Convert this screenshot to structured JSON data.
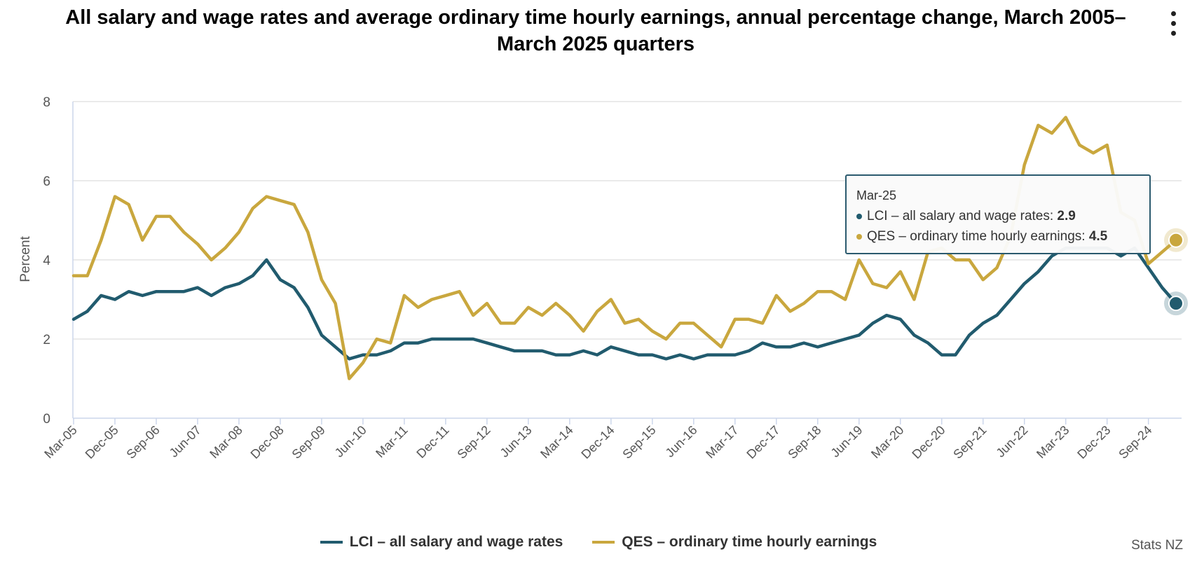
{
  "title": "All salary and wage rates and average ordinary time hourly earnings, annual percentage change, March 2005–March 2025 quarters",
  "credit": "Stats NZ",
  "tooltip": {
    "date": "Mar-25",
    "lci_label": "LCI – all salary and wage rates: ",
    "lci_value": "2.9",
    "qes_label": "QES – ordinary time hourly earnings: ",
    "qes_value": "4.5"
  },
  "colors": {
    "lci": "#215b6e",
    "qes": "#c9a73e",
    "grid": "#e3e3e3",
    "axis": "#ccd6eb"
  },
  "icons": {
    "menu": "context-menu-icon"
  },
  "chart_data": {
    "type": "line",
    "title": "All salary and wage rates and average ordinary time hourly earnings, annual percentage change, March 2005–March 2025 quarters",
    "xlabel": "",
    "ylabel": "Percent",
    "ylim": [
      0,
      8
    ],
    "y_ticks": [
      0,
      2,
      4,
      6,
      8
    ],
    "grid": true,
    "legend_position": "bottom-center",
    "x_tick_labels": [
      "Mar-05",
      "Dec-05",
      "Sep-06",
      "Jun-07",
      "Mar-08",
      "Dec-08",
      "Sep-09",
      "Jun-10",
      "Mar-11",
      "Dec-11",
      "Sep-12",
      "Jun-13",
      "Mar-14",
      "Dec-14",
      "Sep-15",
      "Jun-16",
      "Mar-17",
      "Dec-17",
      "Sep-18",
      "Jun-19",
      "Mar-20",
      "Dec-20",
      "Sep-21",
      "Jun-22",
      "Mar-23",
      "Dec-23",
      "Sep-24"
    ],
    "first_quarter": "Mar-05",
    "last_quarter": "Mar-25",
    "series": [
      {
        "name": "LCI – all salary and wage rates",
        "values": [
          2.5,
          2.7,
          3.1,
          3.0,
          3.2,
          3.1,
          3.2,
          3.2,
          3.2,
          3.3,
          3.1,
          3.3,
          3.4,
          3.6,
          4.0,
          3.5,
          3.3,
          2.8,
          2.1,
          1.8,
          1.5,
          1.6,
          1.6,
          1.7,
          1.9,
          1.9,
          2.0,
          2.0,
          2.0,
          2.0,
          1.9,
          1.8,
          1.7,
          1.7,
          1.7,
          1.6,
          1.6,
          1.7,
          1.6,
          1.8,
          1.7,
          1.6,
          1.6,
          1.5,
          1.6,
          1.5,
          1.6,
          1.6,
          1.6,
          1.7,
          1.9,
          1.8,
          1.8,
          1.9,
          1.8,
          1.9,
          2.0,
          2.1,
          2.4,
          2.6,
          2.5,
          2.1,
          1.9,
          1.6,
          1.6,
          2.1,
          2.4,
          2.6,
          3.0,
          3.4,
          3.7,
          4.1,
          4.3,
          4.3,
          4.3,
          4.3,
          4.1,
          4.3,
          3.8,
          3.3,
          2.9
        ]
      },
      {
        "name": "QES – ordinary time hourly earnings",
        "values": [
          3.6,
          3.6,
          4.5,
          5.6,
          5.4,
          4.5,
          5.1,
          5.1,
          4.7,
          4.4,
          4.0,
          4.3,
          4.7,
          5.3,
          5.6,
          5.5,
          5.4,
          4.7,
          3.5,
          2.9,
          1.0,
          1.4,
          2.0,
          1.9,
          3.1,
          2.8,
          3.0,
          3.1,
          3.2,
          2.6,
          2.9,
          2.4,
          2.4,
          2.8,
          2.6,
          2.9,
          2.6,
          2.2,
          2.7,
          3.0,
          2.4,
          2.5,
          2.2,
          2.0,
          2.4,
          2.4,
          2.1,
          1.8,
          2.5,
          2.5,
          2.4,
          3.1,
          2.7,
          2.9,
          3.2,
          3.2,
          3.0,
          4.0,
          3.4,
          3.3,
          3.7,
          3.0,
          4.2,
          4.3,
          4.0,
          4.0,
          3.5,
          3.8,
          4.6,
          6.4,
          7.4,
          7.2,
          7.6,
          6.9,
          6.7,
          6.9,
          5.2,
          5.0,
          3.9,
          4.2,
          4.5
        ]
      }
    ]
  }
}
